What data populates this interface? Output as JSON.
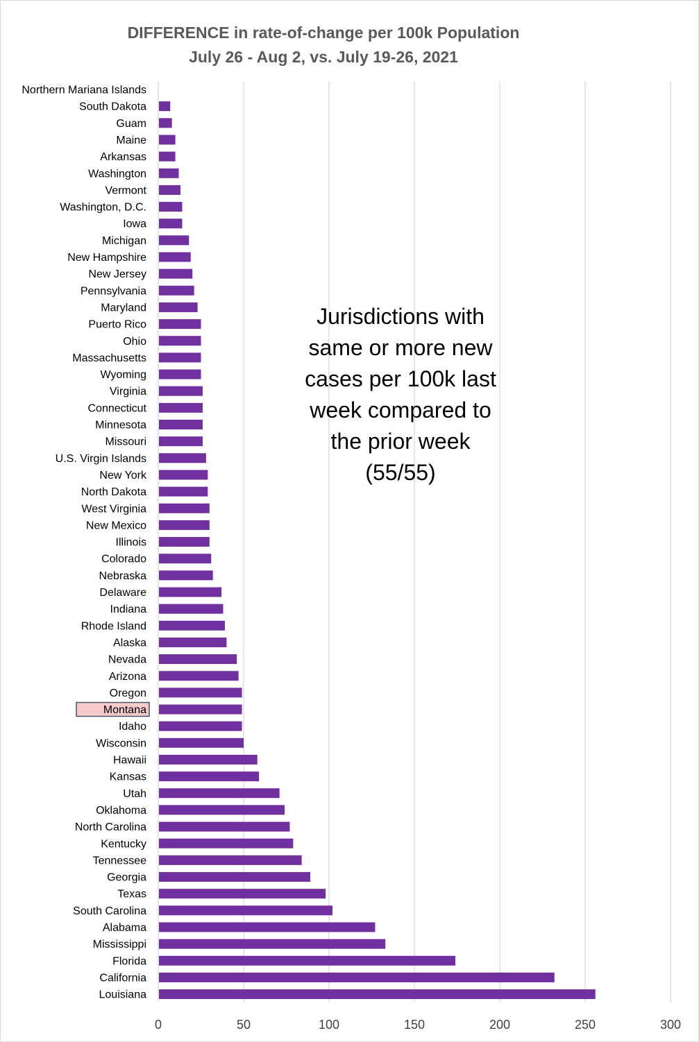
{
  "chart_data": {
    "type": "bar",
    "orientation": "horizontal",
    "title": [
      "DIFFERENCE in rate-of-change per 100k Population",
      "July 26 - Aug 2, vs. July 19-26, 2021"
    ],
    "xlabel": "",
    "ylabel": "",
    "xlim": [
      0,
      300
    ],
    "xticks": [
      0,
      50,
      100,
      150,
      200,
      250,
      300
    ],
    "grid": true,
    "bar_color": "#7030A0",
    "highlight_fill": "#F8CBCB",
    "highlight_border": "#44546A",
    "highlighted_category": "Montana",
    "categories": [
      "Northern Mariana Islands",
      "South Dakota",
      "Guam",
      "Maine",
      "Arkansas",
      "Washington",
      "Vermont",
      "Washington, D.C.",
      "Iowa",
      "Michigan",
      "New Hampshire",
      "New Jersey",
      "Pennsylvania",
      "Maryland",
      "Puerto Rico",
      "Ohio",
      "Massachusetts",
      "Wyoming",
      "Virginia",
      "Connecticut",
      "Minnesota",
      "Missouri",
      "U.S. Virgin Islands",
      "New York",
      "North Dakota",
      "West Virginia",
      "New Mexico",
      "Illinois",
      "Colorado",
      "Nebraska",
      "Delaware",
      "Indiana",
      "Rhode Island",
      "Alaska",
      "Nevada",
      "Arizona",
      "Oregon",
      "Montana",
      "Idaho",
      "Wisconsin",
      "Hawaii",
      "Kansas",
      "Utah",
      "Oklahoma",
      "North Carolina",
      "Kentucky",
      "Tennessee",
      "Georgia",
      "Texas",
      "South Carolina",
      "Alabama",
      "Mississippi",
      "Florida",
      "California",
      "Louisiana"
    ],
    "values": [
      0,
      7,
      8,
      10,
      10,
      12,
      13,
      14,
      14,
      18,
      19,
      20,
      21,
      23,
      25,
      25,
      25,
      25,
      26,
      26,
      26,
      26,
      28,
      29,
      29,
      30,
      30,
      30,
      31,
      32,
      37,
      38,
      39,
      40,
      46,
      47,
      49,
      49,
      49,
      50,
      58,
      59,
      71,
      74,
      77,
      79,
      84,
      89,
      98,
      102,
      127,
      133,
      174,
      232,
      256
    ],
    "annotation": [
      "Jurisdictions with",
      "same or more new",
      "cases per 100k last",
      "week compared to",
      "the prior week",
      "(55/55)"
    ]
  }
}
